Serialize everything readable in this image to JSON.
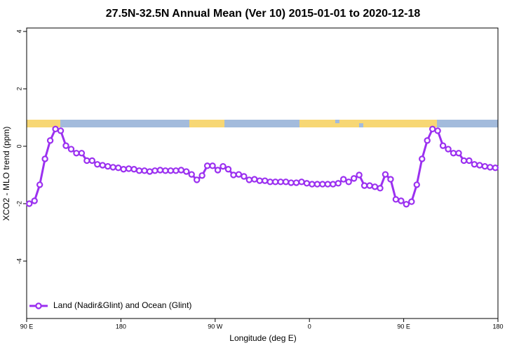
{
  "chart_data": {
    "type": "line",
    "title": "27.5N-32.5N Annual Mean (Ver 10)   2015-01-01 to 2020-12-18",
    "x_label": "Longitude (deg E)",
    "y_label": "XCO2 - MLO trend (ppm)",
    "x": [
      92.5,
      97.5,
      102.5,
      107.5,
      112.5,
      117.5,
      122.5,
      127.5,
      132.5,
      137.5,
      142.5,
      147.5,
      152.5,
      157.5,
      162.5,
      167.5,
      172.5,
      177.5,
      182.5,
      187.5,
      192.5,
      197.5,
      202.5,
      207.5,
      212.5,
      217.5,
      222.5,
      227.5,
      232.5,
      237.5,
      242.5,
      247.5,
      252.5,
      257.5,
      262.5,
      267.5,
      272.5,
      277.5,
      282.5,
      287.5,
      292.5,
      297.5,
      302.5,
      307.5,
      312.5,
      317.5,
      322.5,
      327.5,
      332.5,
      337.5,
      342.5,
      347.5,
      352.5,
      357.5,
      362.5,
      367.5,
      372.5,
      377.5,
      382.5,
      387.5,
      392.5,
      397.5,
      402.5,
      407.5,
      412.5,
      417.5,
      422.5,
      427.5,
      432.5,
      437.5,
      442.5,
      447.5,
      452.5,
      457.5,
      462.5,
      467.5,
      472.5,
      477.5,
      482.5,
      487.5,
      492.5,
      497.5,
      502.5,
      507.5,
      512.5,
      517.5,
      522.5,
      527.5,
      532.5,
      537.5
    ],
    "series": [
      {
        "name": "Land (Nadir&Glint) and Ocean (Glint)",
        "color": "#9b30f0",
        "values": [
          -2.0,
          -1.9,
          -1.34,
          -0.44,
          0.2,
          0.6,
          0.54,
          0.02,
          -0.1,
          -0.24,
          -0.24,
          -0.5,
          -0.5,
          -0.63,
          -0.66,
          -0.7,
          -0.73,
          -0.75,
          -0.8,
          -0.78,
          -0.8,
          -0.85,
          -0.85,
          -0.88,
          -0.85,
          -0.83,
          -0.85,
          -0.85,
          -0.85,
          -0.83,
          -0.88,
          -0.98,
          -1.17,
          -1.02,
          -0.68,
          -0.68,
          -0.83,
          -0.7,
          -0.8,
          -1.0,
          -0.98,
          -1.05,
          -1.17,
          -1.15,
          -1.2,
          -1.2,
          -1.24,
          -1.24,
          -1.24,
          -1.24,
          -1.27,
          -1.27,
          -1.24,
          -1.29,
          -1.32,
          -1.32,
          -1.32,
          -1.32,
          -1.32,
          -1.29,
          -1.15,
          -1.24,
          -1.12,
          -1.0,
          -1.37,
          -1.37,
          -1.41,
          -1.46,
          -0.98,
          -1.15,
          -1.85,
          -1.9,
          -2.02,
          -1.93,
          -1.34,
          -0.44,
          0.2,
          0.6,
          0.54,
          0.02,
          -0.1,
          -0.24,
          -0.24,
          -0.5,
          -0.5,
          -0.63,
          -0.66,
          -0.7,
          -0.73,
          -0.75
        ]
      }
    ],
    "xlim": [
      90,
      540
    ],
    "xticks": [
      {
        "value": 90,
        "label": "90 E"
      },
      180,
      {
        "value": 270,
        "label": "90 W"
      },
      {
        "value": 360,
        "label": "0"
      },
      {
        "value": 450,
        "label": "90 E"
      },
      {
        "value": 540,
        "label": "180"
      }
    ],
    "ylim": [
      -6,
      4.12
    ],
    "yticks": [
      -4,
      -2,
      0,
      2,
      4
    ],
    "grid": false,
    "legend": "bottom-left"
  }
}
